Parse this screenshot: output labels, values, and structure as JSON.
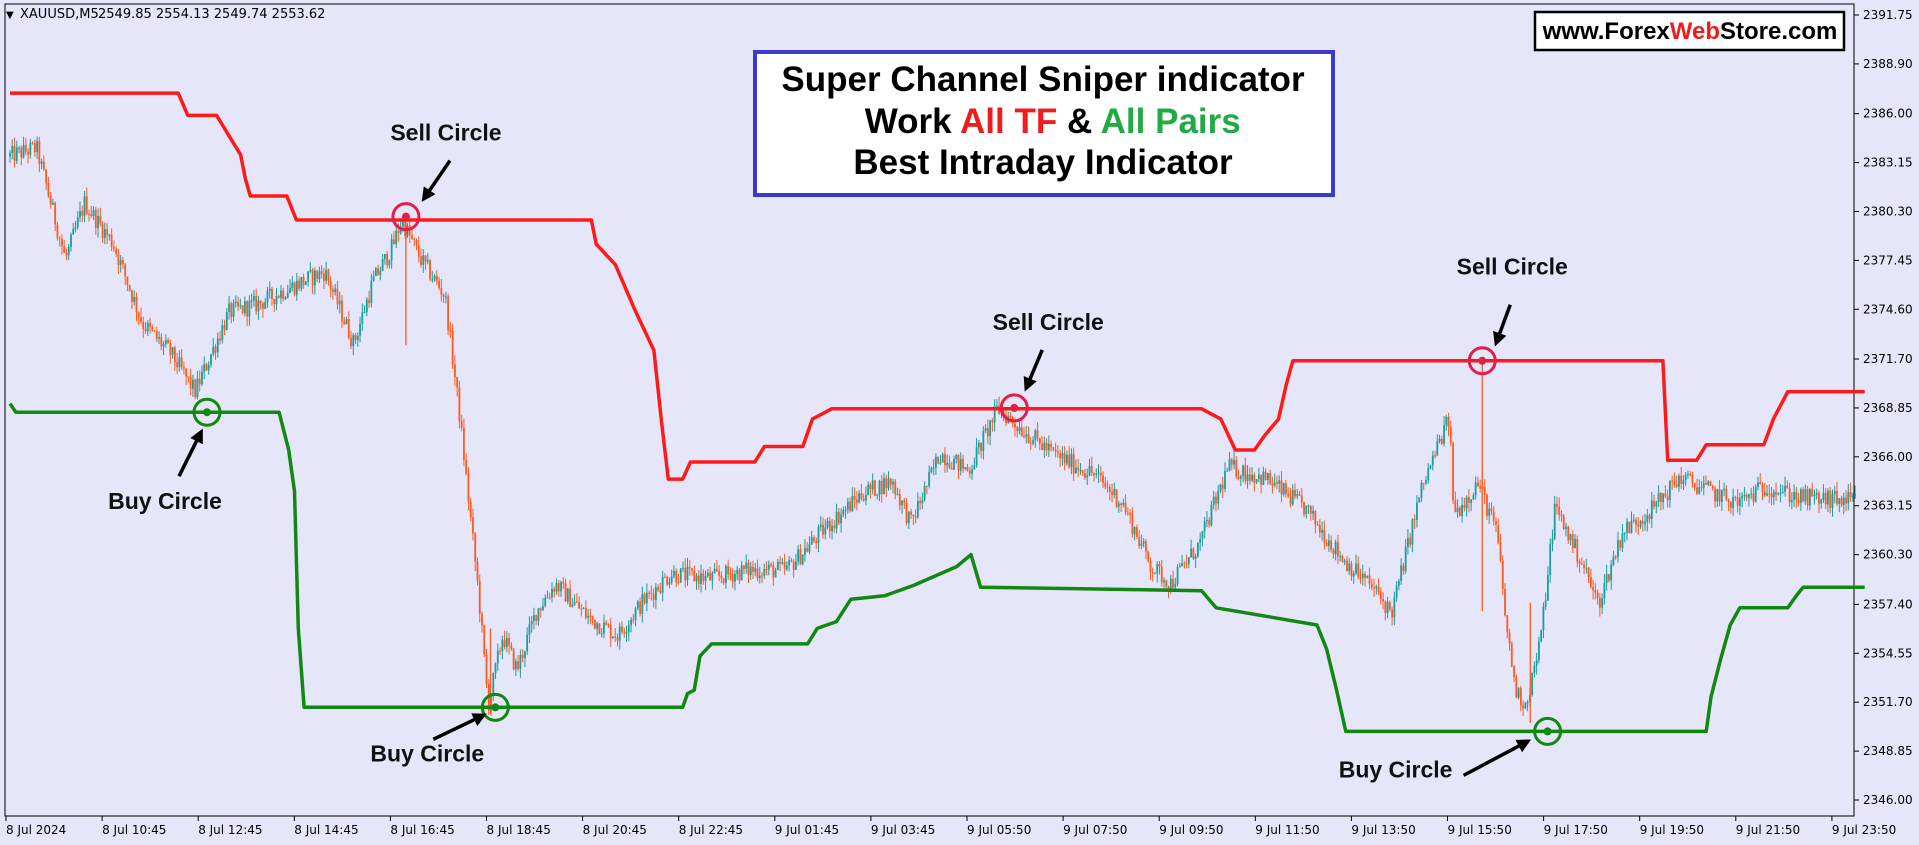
{
  "header": {
    "symbol": "XAUUSD,M5",
    "ohlc": "2549.85 2554.13 2549.74 2553.62"
  },
  "website": {
    "part1": "www.Forex",
    "part2": "Web",
    "part3": "Store.com"
  },
  "title_box": {
    "line1": "Super Channel Sniper indicator",
    "line2_a": "Work ",
    "line2_b": "All TF",
    "line2_c": " & ",
    "line2_d": "All Pairs",
    "line3": "Best Intraday Indicator"
  },
  "colors": {
    "background": "#e6e6fa",
    "upper_band": "#ff1a1a",
    "lower_band": "#118811",
    "bull_candle": "#1a9d9d",
    "bear_candle": "#ff5a1e",
    "sell_circle": "#e0204a",
    "buy_circle": "#118811",
    "title_border": "#3a3acc",
    "accent_red": "#ee1c1c",
    "accent_green": "#22aa44"
  },
  "chart_data": {
    "type": "line",
    "price_ticks": [
      "2391.75",
      "2388.90",
      "2386.00",
      "2383.15",
      "2380.30",
      "2377.45",
      "2374.60",
      "2371.70",
      "2368.85",
      "2366.00",
      "2363.15",
      "2360.30",
      "2357.40",
      "2354.55",
      "2351.70",
      "2348.85",
      "2346.00"
    ],
    "time_ticks": [
      "8 Jul 2024",
      "8 Jul 10:45",
      "8 Jul 12:45",
      "8 Jul 14:45",
      "8 Jul 16:45",
      "8 Jul 18:45",
      "8 Jul 20:45",
      "8 Jul 22:45",
      "9 Jul 01:45",
      "9 Jul 03:45",
      "9 Jul 05:50",
      "9 Jul 07:50",
      "9 Jul 09:50",
      "9 Jul 11:50",
      "9 Jul 13:50",
      "9 Jul 15:50",
      "9 Jul 17:50",
      "9 Jul 19:50",
      "9 Jul 21:50",
      "9 Jul 23:50"
    ],
    "ylim": [
      2345.6,
      2392.6
    ],
    "x_range": [
      0,
      19.3
    ],
    "upper_band": [
      [
        0,
        2387.2
      ],
      [
        1.75,
        2387.2
      ],
      [
        1.85,
        2385.9
      ],
      [
        2.15,
        2385.9
      ],
      [
        2.4,
        2383.6
      ],
      [
        2.45,
        2382.2
      ],
      [
        2.5,
        2381.2
      ],
      [
        2.88,
        2381.2
      ],
      [
        2.98,
        2379.8
      ],
      [
        6.05,
        2379.8
      ],
      [
        6.1,
        2378.4
      ],
      [
        6.3,
        2377.2
      ],
      [
        6.5,
        2374.6
      ],
      [
        6.7,
        2372.2
      ],
      [
        6.78,
        2368.0
      ],
      [
        6.85,
        2364.7
      ],
      [
        7.0,
        2364.7
      ],
      [
        7.08,
        2365.7
      ],
      [
        7.75,
        2365.7
      ],
      [
        7.85,
        2366.6
      ],
      [
        8.25,
        2366.6
      ],
      [
        8.35,
        2368.2
      ],
      [
        8.55,
        2368.8
      ],
      [
        12.4,
        2368.8
      ],
      [
        12.6,
        2368.2
      ],
      [
        12.75,
        2366.4
      ],
      [
        12.95,
        2366.4
      ],
      [
        13.05,
        2367.2
      ],
      [
        13.2,
        2368.2
      ],
      [
        13.28,
        2370.2
      ],
      [
        13.35,
        2371.6
      ],
      [
        17.2,
        2371.6
      ],
      [
        17.25,
        2365.8
      ],
      [
        17.55,
        2365.8
      ],
      [
        17.65,
        2366.7
      ],
      [
        18.25,
        2366.7
      ],
      [
        18.35,
        2368.2
      ],
      [
        18.5,
        2369.8
      ],
      [
        19.3,
        2369.8
      ]
    ],
    "lower_band": [
      [
        0,
        2369.1
      ],
      [
        0.06,
        2368.6
      ],
      [
        2.8,
        2368.6
      ],
      [
        2.9,
        2366.4
      ],
      [
        2.96,
        2364.0
      ],
      [
        3.0,
        2356.0
      ],
      [
        3.06,
        2351.4
      ],
      [
        7.0,
        2351.4
      ],
      [
        7.05,
        2352.2
      ],
      [
        7.12,
        2352.4
      ],
      [
        7.18,
        2354.4
      ],
      [
        7.3,
        2355.1
      ],
      [
        8.3,
        2355.1
      ],
      [
        8.4,
        2356.0
      ],
      [
        8.6,
        2356.4
      ],
      [
        8.75,
        2357.7
      ],
      [
        9.1,
        2357.9
      ],
      [
        9.4,
        2358.5
      ],
      [
        9.85,
        2359.6
      ],
      [
        10.0,
        2360.3
      ],
      [
        10.1,
        2358.4
      ],
      [
        12.4,
        2358.2
      ],
      [
        12.55,
        2357.2
      ],
      [
        13.6,
        2356.2
      ],
      [
        13.7,
        2354.8
      ],
      [
        13.8,
        2352.5
      ],
      [
        13.9,
        2350.0
      ],
      [
        17.65,
        2350.0
      ],
      [
        17.7,
        2352.0
      ],
      [
        17.8,
        2354.2
      ],
      [
        17.9,
        2356.2
      ],
      [
        18.0,
        2357.2
      ],
      [
        18.5,
        2357.2
      ],
      [
        18.6,
        2358.0
      ],
      [
        18.66,
        2358.4
      ],
      [
        19.3,
        2358.4
      ]
    ],
    "price_path": [
      [
        0,
        2383.5
      ],
      [
        0.3,
        2384.0
      ],
      [
        0.6,
        2377.5
      ],
      [
        0.8,
        2380.8
      ],
      [
        1.1,
        2378.4
      ],
      [
        1.4,
        2373.8
      ],
      [
        1.7,
        2372.0
      ],
      [
        1.95,
        2369.8
      ],
      [
        2.3,
        2374.4
      ],
      [
        2.6,
        2374.9
      ],
      [
        2.95,
        2375.9
      ],
      [
        3.3,
        2376.8
      ],
      [
        3.6,
        2372.6
      ],
      [
        3.8,
        2376.2
      ],
      [
        4.0,
        2378.2
      ],
      [
        4.1,
        2379.8
      ],
      [
        4.3,
        2377.5
      ],
      [
        4.55,
        2375.4
      ],
      [
        4.7,
        2368.5
      ],
      [
        4.9,
        2358.0
      ],
      [
        5.0,
        2351.5
      ],
      [
        5.15,
        2355.6
      ],
      [
        5.3,
        2353.6
      ],
      [
        5.5,
        2357.0
      ],
      [
        5.7,
        2358.6
      ],
      [
        6.05,
        2356.6
      ],
      [
        6.35,
        2355.6
      ],
      [
        6.6,
        2357.5
      ],
      [
        6.9,
        2359.2
      ],
      [
        7.3,
        2358.9
      ],
      [
        7.7,
        2359.4
      ],
      [
        8.1,
        2359.4
      ],
      [
        8.5,
        2361.8
      ],
      [
        8.9,
        2363.9
      ],
      [
        9.2,
        2364.6
      ],
      [
        9.4,
        2362.1
      ],
      [
        9.7,
        2366.2
      ],
      [
        10.0,
        2365.2
      ],
      [
        10.3,
        2368.8
      ],
      [
        10.6,
        2367.4
      ],
      [
        10.9,
        2366.1
      ],
      [
        11.3,
        2365.0
      ],
      [
        11.6,
        2363.3
      ],
      [
        11.9,
        2359.6
      ],
      [
        12.1,
        2358.6
      ],
      [
        12.4,
        2360.9
      ],
      [
        12.7,
        2365.4
      ],
      [
        13.1,
        2364.7
      ],
      [
        13.5,
        2363.0
      ],
      [
        13.9,
        2360.0
      ],
      [
        14.2,
        2358.4
      ],
      [
        14.4,
        2356.9
      ],
      [
        14.7,
        2363.9
      ],
      [
        14.9,
        2366.9
      ],
      [
        15.0,
        2368.2
      ],
      [
        15.05,
        2362.6
      ],
      [
        15.3,
        2364.5
      ],
      [
        15.5,
        2361.5
      ],
      [
        15.6,
        2355.8
      ],
      [
        15.7,
        2352.2
      ],
      [
        15.8,
        2351.6
      ],
      [
        15.95,
        2355.3
      ],
      [
        16.1,
        2363.1
      ],
      [
        16.4,
        2359.6
      ],
      [
        16.55,
        2357.4
      ],
      [
        16.8,
        2361.6
      ],
      [
        17.1,
        2362.9
      ],
      [
        17.4,
        2364.8
      ],
      [
        17.75,
        2363.9
      ],
      [
        18.0,
        2363.3
      ],
      [
        18.3,
        2364.3
      ],
      [
        18.65,
        2363.6
      ],
      [
        19.3,
        2363.4
      ]
    ],
    "annotations": [
      {
        "label": "Sell Circle",
        "type": "sell",
        "x": 4.12,
        "price": 2380.0
      },
      {
        "label": "Sell Circle",
        "type": "sell",
        "x": 10.45,
        "price": 2368.85
      },
      {
        "label": "Sell Circle",
        "type": "sell",
        "x": 15.32,
        "price": 2371.6
      },
      {
        "label": "Buy Circle",
        "type": "buy",
        "x": 2.05,
        "price": 2368.6
      },
      {
        "label": "Buy Circle",
        "type": "buy",
        "x": 5.05,
        "price": 2351.4
      },
      {
        "label": "Buy Circle",
        "type": "buy",
        "x": 16.0,
        "price": 2350.0
      }
    ]
  }
}
